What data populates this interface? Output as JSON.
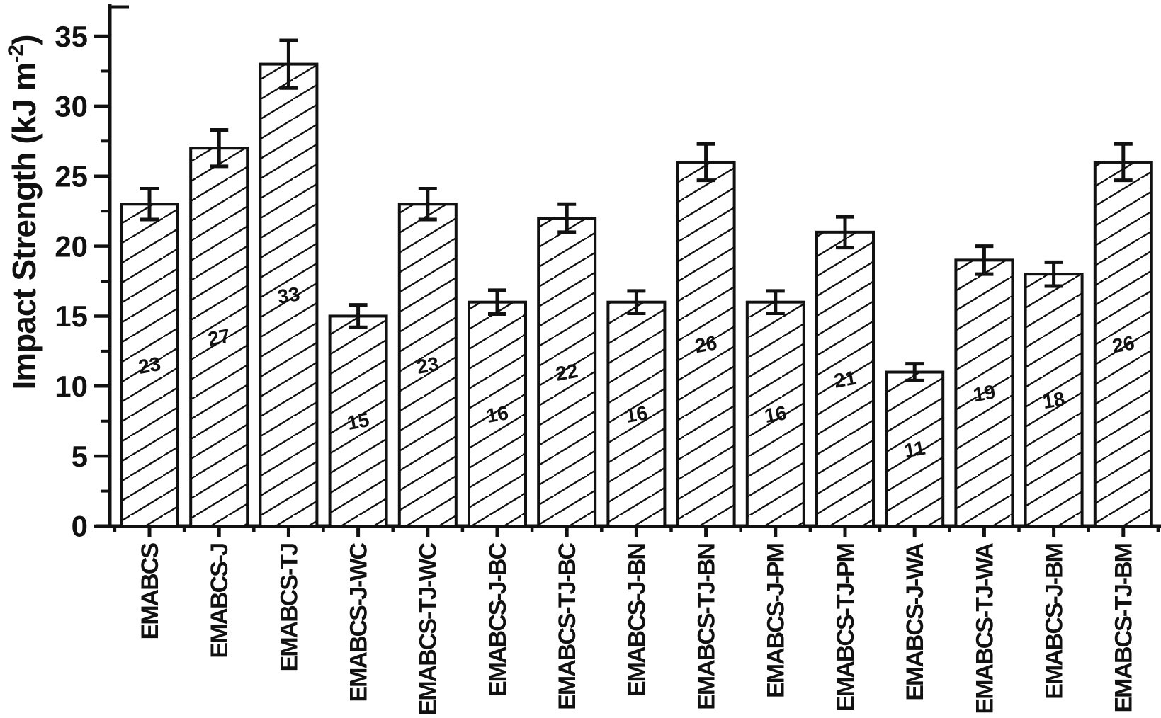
{
  "figure": {
    "background": "#ffffff",
    "ink_color": "#111111"
  },
  "chart_data": {
    "type": "bar",
    "ylabel": "Impact Strength (kJ m⁻²)",
    "ylabel_parts": {
      "main": "Impact Strength (kJ m",
      "sup": "-2",
      "close": ")"
    },
    "xlabel": "",
    "categories": [
      "EMABCS",
      "EMABCS-J",
      "EMABCS-TJ",
      "EMABCS-J-WC",
      "EMABCS-TJ-WC",
      "EMABCS-J-BC",
      "EMABCS-TJ-BC",
      "EMABCS-J-BN",
      "EMABCS-TJ-BN",
      "EMABCS-J-PM",
      "EMABCS-TJ-PM",
      "EMABCS-J-WA",
      "EMABCS-TJ-WA",
      "EMABCS-J-BM",
      "EMABCS-TJ-BM"
    ],
    "values": [
      23,
      27,
      33,
      15,
      23,
      16,
      22,
      16,
      26,
      16,
      21,
      11,
      19,
      18,
      26
    ],
    "errors": [
      1.1,
      1.3,
      1.7,
      0.8,
      1.1,
      0.85,
      1.0,
      0.8,
      1.3,
      0.8,
      1.1,
      0.6,
      1.0,
      0.85,
      1.3
    ],
    "yticks": {
      "values": [
        0,
        5,
        10,
        15,
        20,
        25,
        30,
        35
      ],
      "labels": [
        "0",
        "5",
        "10",
        "15",
        "20",
        "25",
        "30",
        "35"
      ],
      "minor_step": 2.5
    },
    "ylim": [
      0,
      37.3
    ],
    "grid": false,
    "error_bars": true,
    "bar_hatch": "forward-diagonal",
    "xtick_label_rotation_deg": 90,
    "bar_value_label_rotation_deg": -10
  }
}
